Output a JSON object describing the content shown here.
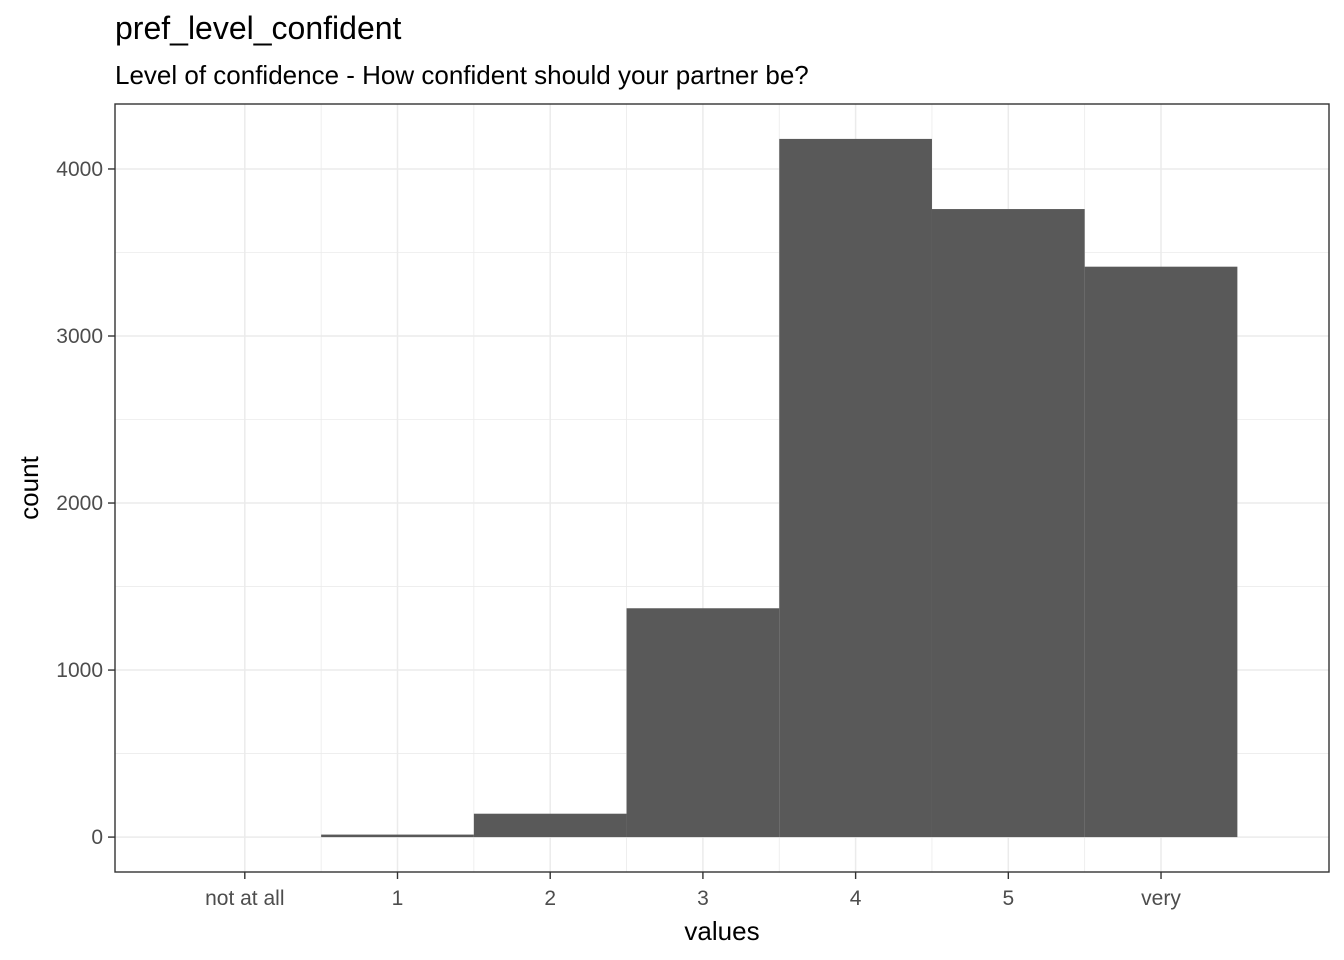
{
  "chart_data": {
    "type": "bar",
    "title": "pref_level_confident",
    "subtitle": "Level of confidence - How confident should your partner be?",
    "xlabel": "values",
    "ylabel": "count",
    "categories": [
      "not at all",
      "1",
      "2",
      "3",
      "4",
      "5",
      "very"
    ],
    "x_ticks": [
      0,
      1,
      2,
      3,
      4,
      5,
      6
    ],
    "bins": [
      {
        "x_start": 0.5,
        "x_end": 1.5,
        "count": 15
      },
      {
        "x_start": 1.5,
        "x_end": 2.5,
        "count": 140
      },
      {
        "x_start": 2.5,
        "x_end": 3.5,
        "count": 1370
      },
      {
        "x_start": 3.5,
        "x_end": 4.5,
        "count": 4180
      },
      {
        "x_start": 4.5,
        "x_end": 5.5,
        "count": 3760
      },
      {
        "x_start": 5.5,
        "x_end": 6.5,
        "count": 3415
      }
    ],
    "y_ticks": [
      0,
      1000,
      2000,
      3000,
      4000
    ],
    "y_ticks_labels": [
      "0",
      "1000",
      "2000",
      "3000",
      "4000"
    ],
    "xlim": [
      -0.85,
      7.1
    ],
    "ylim": [
      -209,
      4389
    ],
    "grid": true,
    "bar_color": "#595959",
    "grid_color": "#ebebeb",
    "border_color": "#333333"
  }
}
